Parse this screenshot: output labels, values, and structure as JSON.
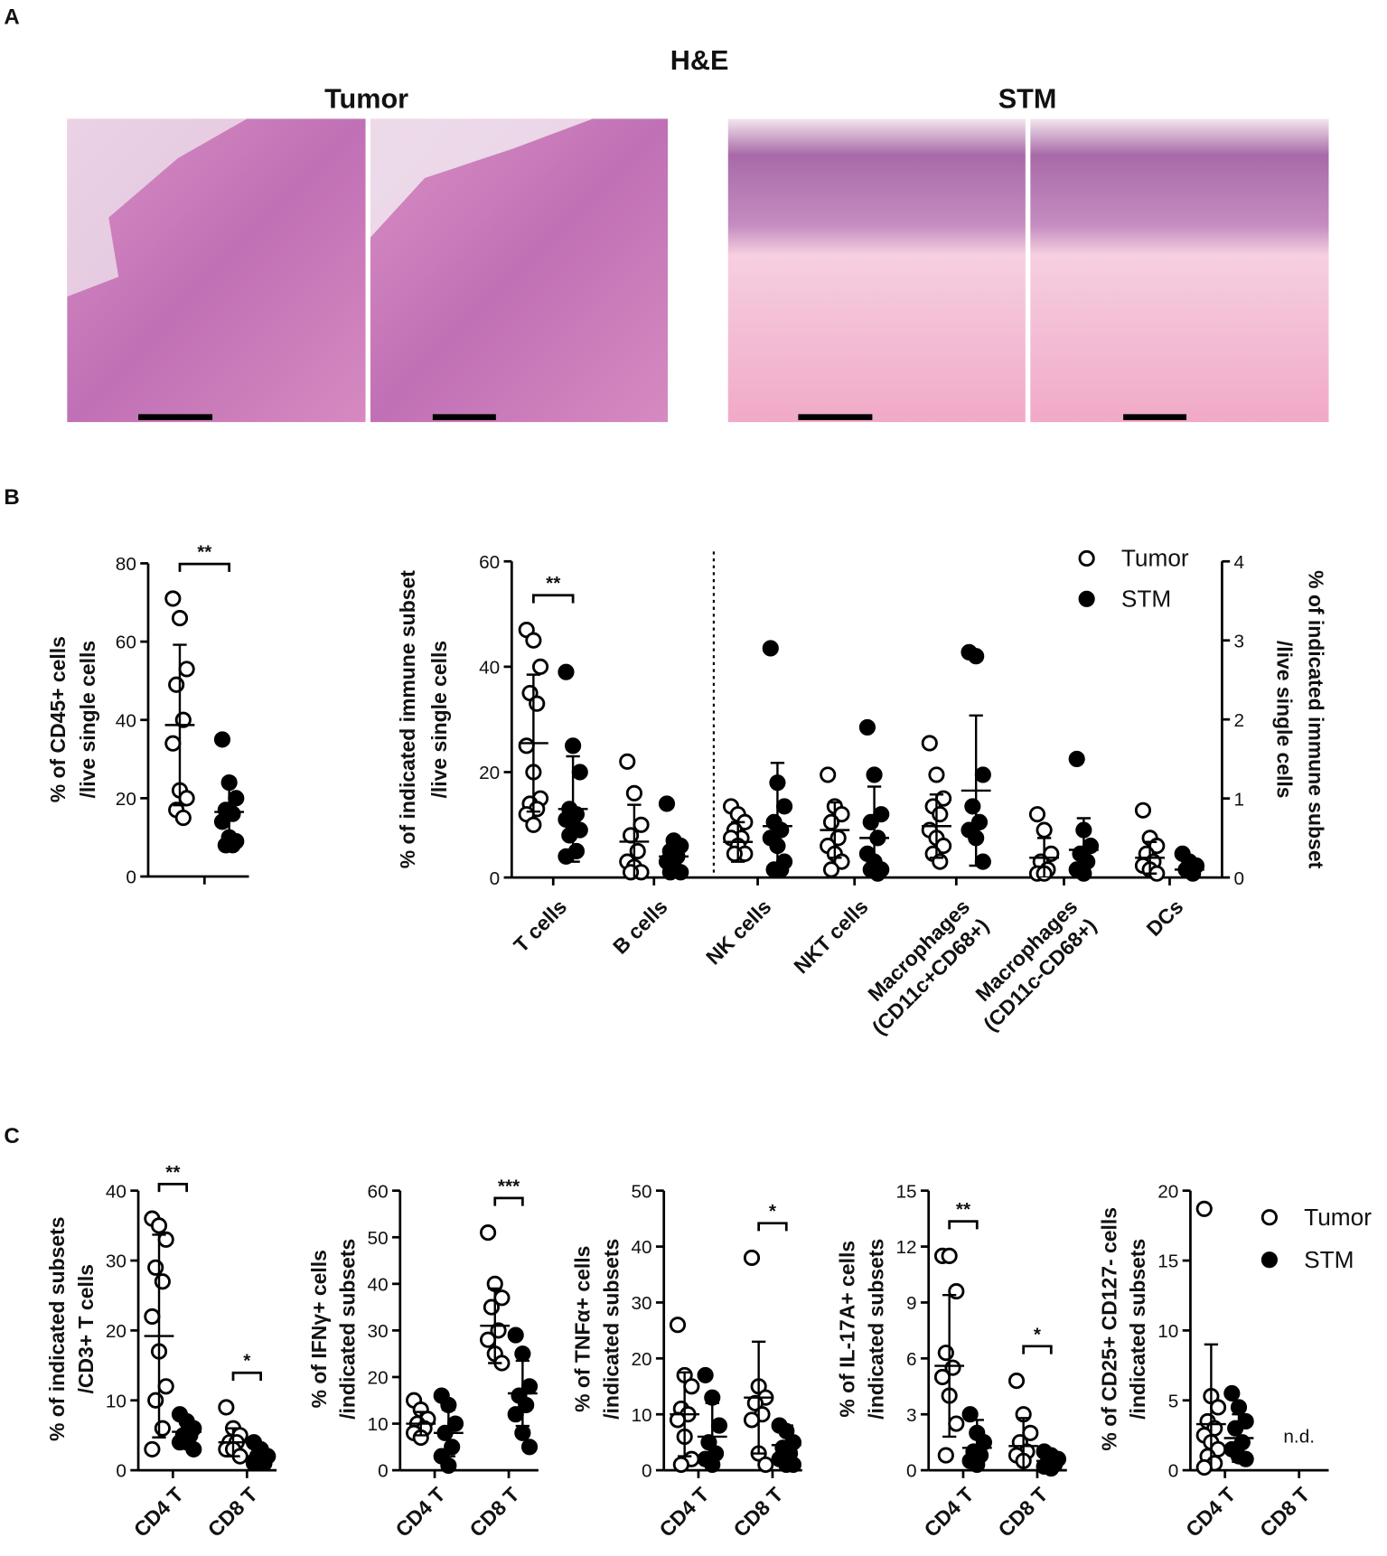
{
  "labels": {
    "a": "A",
    "b": "B",
    "c": "C"
  },
  "he": {
    "title": "H&E",
    "groups": [
      "Tumor",
      "STM"
    ]
  },
  "chart_data": [
    {
      "type": "dotplot",
      "ylabel": [
        "% of CD45+ cells",
        "/live single cells"
      ],
      "categories": [
        null
      ],
      "series": [
        {
          "marker": "open",
          "color": "#000000",
          "values": [
            [
              71,
              66,
              53,
              49,
              40,
              34,
              22,
              20,
              17,
              15
            ]
          ],
          "mean": [
            38.7
          ],
          "sd": [
            20.5
          ]
        },
        {
          "marker": "filled",
          "color": "#000000",
          "values": [
            [
              35,
              24,
              20,
              17,
              16,
              14,
              10,
              9,
              8,
              8
            ]
          ],
          "mean": [
            16.5
          ],
          "sd": [
            8.5
          ]
        }
      ],
      "ylim": [
        0,
        80
      ],
      "yticks": [
        0,
        20,
        40,
        60,
        80
      ],
      "significance": [
        {
          "label": "**",
          "category": 0
        }
      ]
    },
    {
      "type": "dotplot",
      "ylabel": [
        "% of indicated immune subset",
        "/live single cells"
      ],
      "y2label": [
        "% of indicated immune subset",
        "/live single cells"
      ],
      "categories": [
        "T cells",
        "B cells",
        "NK cells",
        "NKT cells",
        [
          "Macrophages",
          "(CD11c+CD68+)"
        ],
        [
          "Macrophages",
          "(CD11c-CD68+)"
        ],
        "DCs"
      ],
      "category_axis": [
        "y",
        "y",
        "y2",
        "y2",
        "y2",
        "y2",
        "y2"
      ],
      "series": [
        {
          "name": "Tumor",
          "marker": "open",
          "color": "#000000",
          "values": [
            [
              47,
              45,
              40,
              35,
              33,
              25,
              20,
              15,
              14,
              13,
              12,
              10
            ],
            [
              22,
              16,
              10,
              8,
              5,
              3,
              2,
              1,
              1
            ],
            [
              0.9,
              0.8,
              0.7,
              0.6,
              0.5,
              0.5,
              0.4,
              0.3,
              0.3
            ],
            [
              1.3,
              0.9,
              0.8,
              0.7,
              0.5,
              0.4,
              0.3,
              0.2,
              0.1
            ],
            [
              1.7,
              1.3,
              1.0,
              0.9,
              0.8,
              0.6,
              0.5,
              0.4,
              0.3,
              0.2
            ],
            [
              0.8,
              0.6,
              0.3,
              0.2,
              0.1,
              0.05,
              0.05
            ],
            [
              0.85,
              0.5,
              0.4,
              0.3,
              0.2,
              0.15,
              0.1,
              0.05
            ]
          ],
          "mean": [
            25.5,
            6.8,
            0.45,
            0.6,
            0.65,
            0.25,
            0.25
          ],
          "sd": [
            13,
            7,
            0.25,
            0.35,
            0.4,
            0.25,
            0.2
          ]
        },
        {
          "name": "STM",
          "marker": "filled",
          "color": "#000000",
          "values": [
            [
              39,
              25,
              20,
              13,
              12,
              11,
              10,
              9,
              8,
              5,
              4
            ],
            [
              14,
              7,
              6,
              5,
              4,
              3,
              2,
              1,
              1
            ],
            [
              2.9,
              1.2,
              0.9,
              0.7,
              0.6,
              0.5,
              0.4,
              0.2,
              0.1,
              0.1
            ],
            [
              1.9,
              1.3,
              0.8,
              0.7,
              0.5,
              0.3,
              0.2,
              0.1,
              0.1,
              0.05
            ],
            [
              2.85,
              2.8,
              1.3,
              0.9,
              0.7,
              0.6,
              0.5,
              0.2
            ],
            [
              1.5,
              0.6,
              0.4,
              0.3,
              0.2,
              0.1,
              0.05
            ],
            [
              0.3,
              0.2,
              0.15,
              0.1,
              0.05
            ]
          ],
          "mean": [
            13,
            4,
            0.65,
            0.5,
            1.1,
            0.35,
            0.1
          ],
          "sd": [
            10,
            3,
            0.8,
            0.65,
            0.95,
            0.4,
            0.1
          ]
        }
      ],
      "ylim": [
        0,
        60
      ],
      "yticks": [
        0,
        20,
        40,
        60
      ],
      "y2lim": [
        0,
        4
      ],
      "y2ticks": [
        0,
        1,
        2,
        3,
        4
      ],
      "legend": "upper right",
      "significance": [
        {
          "label": "**",
          "category": 0
        }
      ]
    },
    {
      "type": "dotplot",
      "ylabel": [
        "% of indicated subsets",
        "/CD3+ T cells"
      ],
      "categories": [
        "CD4 T",
        "CD8 T"
      ],
      "series": [
        {
          "marker": "open",
          "color": "#000000",
          "values": [
            [
              36,
              35,
              33,
              29,
              27,
              22,
              17,
              12,
              10,
              6,
              3
            ],
            [
              9,
              6,
              5,
              4,
              4,
              3,
              3,
              2
            ]
          ],
          "mean": [
            19.2,
            4
          ],
          "sd": [
            14.5,
            2
          ]
        },
        {
          "marker": "filled",
          "color": "#000000",
          "values": [
            [
              8,
              7,
              6,
              5,
              5,
              4,
              4,
              3
            ],
            [
              4,
              3,
              2,
              2,
              1,
              1
            ]
          ],
          "mean": [
            5.5,
            2
          ],
          "sd": [
            2,
            1
          ]
        }
      ],
      "ylim": [
        0,
        40
      ],
      "yticks": [
        0,
        10,
        20,
        30,
        40
      ],
      "significance": [
        {
          "label": "**",
          "category": 0
        },
        {
          "label": "*",
          "category": 1
        }
      ]
    },
    {
      "type": "dotplot",
      "ylabel": [
        "% of IFNγ+ cells",
        "/indicated subsets"
      ],
      "categories": [
        "CD4 T",
        "CD8 T"
      ],
      "series": [
        {
          "marker": "open",
          "color": "#000000",
          "values": [
            [
              15,
              13,
              11,
              10,
              9,
              8,
              7
            ],
            [
              51,
              40,
              37,
              35,
              30,
              28,
              25,
              23
            ]
          ],
          "mean": [
            10,
            31
          ],
          "sd": [
            2.5,
            8
          ]
        },
        {
          "marker": "filled",
          "color": "#000000",
          "values": [
            [
              16,
              14,
              10,
              8,
              5,
              3,
              1
            ],
            [
              29,
              25,
              18,
              16,
              14,
              12,
              8,
              5
            ]
          ],
          "mean": [
            8,
            16.5
          ],
          "sd": [
            5,
            7
          ]
        }
      ],
      "ylim": [
        0,
        60
      ],
      "yticks": [
        0,
        10,
        20,
        30,
        40,
        50,
        60
      ],
      "significance": [
        {
          "label": "***",
          "category": 1
        }
      ]
    },
    {
      "type": "dotplot",
      "ylabel": [
        "% of TNFα+ cells",
        "/indicated subsets"
      ],
      "categories": [
        "CD4 T",
        "CD8 T"
      ],
      "series": [
        {
          "marker": "open",
          "color": "#000000",
          "values": [
            [
              26,
              17,
              15,
              11,
              10,
              9,
              6,
              2,
              1
            ],
            [
              38,
              15,
              13,
              12,
              10,
              9,
              3,
              1
            ]
          ],
          "mean": [
            10,
            13
          ],
          "sd": [
            7.5,
            10
          ]
        },
        {
          "marker": "filled",
          "color": "#000000",
          "values": [
            [
              17,
              13,
              8,
              5,
              3,
              2,
              1
            ],
            [
              8,
              7,
              5,
              4,
              3,
              2,
              1,
              1
            ]
          ],
          "mean": [
            6,
            4.5
          ],
          "sd": [
            6,
            3.5
          ]
        }
      ],
      "ylim": [
        0,
        50
      ],
      "yticks": [
        0,
        10,
        20,
        30,
        40,
        50
      ],
      "significance": [
        {
          "label": "*",
          "category": 1
        }
      ]
    },
    {
      "type": "dotplot",
      "ylabel": [
        "% of IL-17A+ cells",
        "/indicated subsets"
      ],
      "categories": [
        "CD4 T",
        "CD8 T"
      ],
      "series": [
        {
          "marker": "open",
          "color": "#000000",
          "values": [
            [
              11.5,
              11.5,
              9.6,
              6.3,
              5.5,
              5,
              4,
              2.5,
              0.8
            ],
            [
              4.8,
              3,
              2,
              1.5,
              1,
              0.8,
              0.5
            ]
          ],
          "mean": [
            5.6,
            1.3
          ],
          "sd": [
            3.8,
            1.5
          ]
        },
        {
          "marker": "filled",
          "color": "#000000",
          "values": [
            [
              3,
              2,
              1.5,
              1,
              0.8,
              0.5,
              0.3
            ],
            [
              1,
              0.8,
              0.6,
              0.4,
              0.3,
              0.2,
              0.1
            ]
          ],
          "mean": [
            1.2,
            0.5
          ],
          "sd": [
            1.5,
            0.3
          ]
        }
      ],
      "ylim": [
        0,
        15
      ],
      "yticks": [
        0,
        3,
        6,
        9,
        12,
        15
      ],
      "significance": [
        {
          "label": "**",
          "category": 0
        },
        {
          "label": "*",
          "category": 1
        }
      ]
    },
    {
      "type": "dotplot",
      "ylabel": [
        "% of CD25+ CD127- cells",
        "/indicated subsets"
      ],
      "categories": [
        "CD4 T",
        "CD8 T"
      ],
      "series": [
        {
          "name": "Tumor",
          "marker": "open",
          "color": "#000000",
          "values": [
            [
              18.7,
              5.3,
              4.5,
              3.5,
              3,
              2.5,
              2,
              1.5,
              1,
              0.5,
              0.2
            ],
            []
          ],
          "mean": [
            3.3,
            null
          ],
          "sd": [
            5.7,
            null
          ]
        },
        {
          "name": "STM",
          "marker": "filled",
          "color": "#000000",
          "values": [
            [
              5.5,
              4.5,
              3.5,
              3,
              2,
              1.5,
              1,
              0.8
            ],
            []
          ],
          "mean": [
            2.3,
            null
          ],
          "sd": [
            1.7,
            null
          ]
        }
      ],
      "ylim": [
        0,
        20
      ],
      "yticks": [
        0,
        5,
        10,
        15,
        20
      ],
      "legend": "upper right",
      "annotations": [
        {
          "text": "n.d.",
          "category": 1
        }
      ]
    }
  ]
}
